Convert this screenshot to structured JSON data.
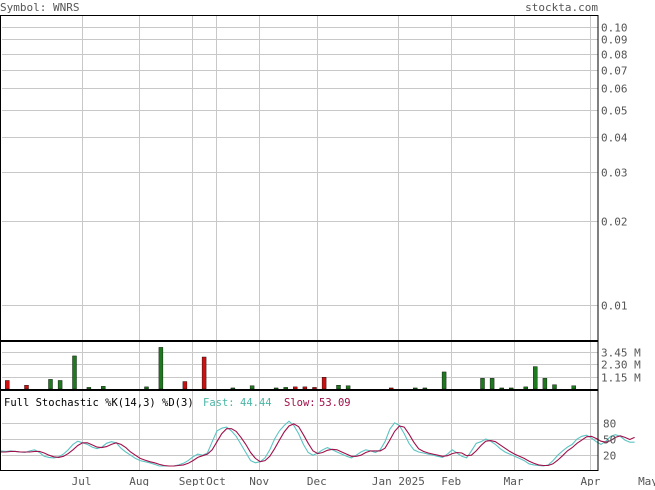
{
  "header": {
    "symbol_text": "Symbol: WNRS",
    "site_text": "stockta.com"
  },
  "colors": {
    "grid": "#c8c8c8",
    "axis": "#000000",
    "text": "#555555",
    "up_bar": "#1f7a1f",
    "down_bar": "#d01010",
    "fast_line": "#5cc3c3",
    "slow_line": "#a0104a",
    "fast_label": "#4bb5a5",
    "slow_label": "#a0104a"
  },
  "chart_data": [
    {
      "type": "line",
      "panel": "price",
      "scale": "log",
      "ylim": [
        0.0075,
        0.11
      ],
      "yticks": [
        0.1,
        0.09,
        0.08,
        0.07,
        0.06,
        0.05,
        0.04,
        0.03,
        0.02,
        0.01
      ],
      "ytick_labels": [
        "0.10",
        "0.09",
        "0.08",
        "0.07",
        "0.06",
        "0.05",
        "0.04",
        "0.03",
        "0.02",
        "0.01"
      ],
      "series": []
    },
    {
      "type": "bar",
      "panel": "volume",
      "ylim": [
        0,
        4.5
      ],
      "yticks": [
        3.45,
        2.3,
        1.15
      ],
      "ytick_labels": [
        "3.45 M",
        "2.30 M",
        "1.15 M"
      ],
      "bars": [
        {
          "i": 1,
          "v": 0.8,
          "dir": "down"
        },
        {
          "i": 5,
          "v": 0.35,
          "dir": "down"
        },
        {
          "i": 10,
          "v": 0.9,
          "dir": "up"
        },
        {
          "i": 12,
          "v": 0.8,
          "dir": "up"
        },
        {
          "i": 15,
          "v": 3.1,
          "dir": "up"
        },
        {
          "i": 18,
          "v": 0.15,
          "dir": "up"
        },
        {
          "i": 21,
          "v": 0.25,
          "dir": "up"
        },
        {
          "i": 30,
          "v": 0.2,
          "dir": "up"
        },
        {
          "i": 33,
          "v": 3.9,
          "dir": "up"
        },
        {
          "i": 38,
          "v": 0.7,
          "dir": "down"
        },
        {
          "i": 42,
          "v": 3.0,
          "dir": "down"
        },
        {
          "i": 48,
          "v": 0.1,
          "dir": "up"
        },
        {
          "i": 52,
          "v": 0.3,
          "dir": "up"
        },
        {
          "i": 57,
          "v": 0.1,
          "dir": "up"
        },
        {
          "i": 59,
          "v": 0.15,
          "dir": "up"
        },
        {
          "i": 61,
          "v": 0.2,
          "dir": "down"
        },
        {
          "i": 63,
          "v": 0.2,
          "dir": "down"
        },
        {
          "i": 65,
          "v": 0.15,
          "dir": "down"
        },
        {
          "i": 67,
          "v": 1.1,
          "dir": "down"
        },
        {
          "i": 70,
          "v": 0.35,
          "dir": "up"
        },
        {
          "i": 72,
          "v": 0.3,
          "dir": "up"
        },
        {
          "i": 81,
          "v": 0.1,
          "dir": "down"
        },
        {
          "i": 86,
          "v": 0.1,
          "dir": "up"
        },
        {
          "i": 88,
          "v": 0.1,
          "dir": "up"
        },
        {
          "i": 92,
          "v": 1.6,
          "dir": "up"
        },
        {
          "i": 100,
          "v": 1.0,
          "dir": "up"
        },
        {
          "i": 102,
          "v": 1.0,
          "dir": "up"
        },
        {
          "i": 104,
          "v": 0.1,
          "dir": "up"
        },
        {
          "i": 106,
          "v": 0.1,
          "dir": "up"
        },
        {
          "i": 109,
          "v": 0.2,
          "dir": "up"
        },
        {
          "i": 111,
          "v": 2.1,
          "dir": "up"
        },
        {
          "i": 113,
          "v": 1.0,
          "dir": "up"
        },
        {
          "i": 115,
          "v": 0.4,
          "dir": "up"
        },
        {
          "i": 119,
          "v": 0.3,
          "dir": "up"
        }
      ]
    },
    {
      "type": "line",
      "panel": "stochastic",
      "title": "Full Stochastic %K(14,3) %D(3)",
      "fast_label": "Fast:",
      "fast_value": "44.44",
      "slow_label": "Slow:",
      "slow_value": "53.09",
      "ylim": [
        0,
        100
      ],
      "yticks": [
        80,
        50,
        20
      ],
      "ytick_labels": [
        "80",
        "50",
        "20"
      ],
      "series": [
        {
          "name": "Fast",
          "values": [
            28,
            27,
            28,
            27,
            26,
            25,
            28,
            30,
            25,
            18,
            16,
            15,
            17,
            22,
            30,
            40,
            46,
            43,
            40,
            35,
            32,
            35,
            42,
            45,
            43,
            33,
            26,
            20,
            14,
            10,
            8,
            6,
            3,
            0,
            0,
            0,
            0,
            2,
            5,
            10,
            17,
            22,
            20,
            24,
            45,
            65,
            70,
            72,
            65,
            55,
            40,
            25,
            10,
            6,
            8,
            15,
            30,
            50,
            65,
            75,
            83,
            75,
            60,
            40,
            25,
            20,
            24,
            30,
            34,
            30,
            26,
            22,
            18,
            15,
            20,
            26,
            30,
            28,
            25,
            30,
            45,
            68,
            80,
            75,
            60,
            42,
            30,
            26,
            24,
            22,
            20,
            18,
            16,
            22,
            30,
            24,
            18,
            15,
            28,
            42,
            45,
            50,
            46,
            40,
            32,
            26,
            22,
            18,
            14,
            10,
            4,
            2,
            1,
            0,
            2,
            10,
            20,
            28,
            35,
            40,
            50,
            55,
            57,
            52,
            45,
            40,
            46,
            55,
            58,
            55,
            48,
            44,
            44
          ]
        },
        {
          "name": "Slow",
          "values": [
            26,
            26,
            27,
            27,
            26,
            26,
            26,
            27,
            27,
            24,
            20,
            17,
            16,
            18,
            23,
            30,
            38,
            43,
            43,
            39,
            35,
            34,
            36,
            40,
            43,
            40,
            34,
            26,
            20,
            14,
            11,
            8,
            6,
            3,
            1,
            0,
            0,
            1,
            2,
            5,
            10,
            16,
            19,
            22,
            30,
            45,
            60,
            69,
            69,
            64,
            53,
            40,
            25,
            14,
            8,
            10,
            18,
            32,
            48,
            63,
            74,
            78,
            73,
            58,
            42,
            28,
            23,
            25,
            29,
            31,
            30,
            26,
            22,
            18,
            18,
            20,
            25,
            28,
            28,
            28,
            33,
            48,
            64,
            74,
            72,
            59,
            44,
            32,
            27,
            24,
            22,
            20,
            18,
            19,
            23,
            25,
            24,
            19,
            20,
            28,
            38,
            46,
            47,
            45,
            39,
            33,
            27,
            22,
            18,
            14,
            9,
            5,
            2,
            1,
            1,
            4,
            11,
            19,
            28,
            34,
            42,
            48,
            54,
            55,
            51,
            46,
            44,
            47,
            53,
            56,
            53,
            49,
            53
          ]
        }
      ]
    }
  ],
  "x_axis": {
    "labels": [
      {
        "i": 17,
        "text": "Jul"
      },
      {
        "i": 29,
        "text": "Aug"
      },
      {
        "i": 40,
        "text": "Sept"
      },
      {
        "i": 45,
        "text": "Oct"
      },
      {
        "i": 54,
        "text": "Nov"
      },
      {
        "i": 66,
        "text": "Dec"
      },
      {
        "i": 83,
        "text": "Jan 2025"
      },
      {
        "i": 94,
        "text": "Feb"
      },
      {
        "i": 107,
        "text": "Mar"
      },
      {
        "i": 123,
        "text": "Apr"
      },
      {
        "i": 135,
        "text": "May"
      }
    ]
  }
}
